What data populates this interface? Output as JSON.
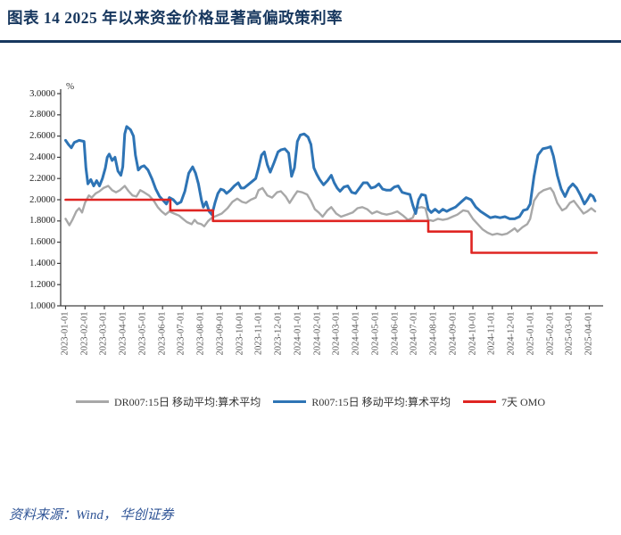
{
  "header": {
    "title": "图表 14  2025 年以来资金价格显著高偏政策利率"
  },
  "footer": {
    "source": "资料来源：Wind， 华创证券"
  },
  "chart_data": {
    "type": "line",
    "unit_label": "%",
    "ylim": [
      1.0,
      3.0
    ],
    "ytick_step": 0.2,
    "grid": false,
    "legend_position": "bottom",
    "ytick_labels": [
      "3.0000",
      "2.8000",
      "2.6000",
      "2.4000",
      "2.2000",
      "2.0000",
      "1.8000",
      "1.6000",
      "1.4000",
      "1.2000",
      "1.0000"
    ],
    "x_categories": [
      "2023-01-01",
      "2023-02-01",
      "2023-03-01",
      "2023-04-01",
      "2023-05-01",
      "2023-06-01",
      "2023-07-01",
      "2023-08-01",
      "2023-09-01",
      "2023-10-01",
      "2023-11-01",
      "2023-12-01",
      "2024-01-01",
      "2024-02-01",
      "2024-03-01",
      "2024-04-01",
      "2024-05-01",
      "2024-06-01",
      "2024-07-01",
      "2024-08-01",
      "2024-09-01",
      "2024-10-01",
      "2024-11-01",
      "2024-12-01",
      "2025-01-01",
      "2025-02-01",
      "2025-03-01",
      "2025-04-01"
    ],
    "series": [
      {
        "name": "DR007:15日 移动平均:算术平均",
        "color": "#a8a8a8",
        "stroke_width": 2.4,
        "points": [
          [
            0.0,
            1.82
          ],
          [
            0.2,
            1.76
          ],
          [
            0.35,
            1.81
          ],
          [
            0.55,
            1.89
          ],
          [
            0.7,
            1.92
          ],
          [
            0.85,
            1.88
          ],
          [
            1.0,
            1.97
          ],
          [
            1.2,
            2.04
          ],
          [
            1.35,
            2.02
          ],
          [
            1.55,
            2.06
          ],
          [
            1.75,
            2.08
          ],
          [
            1.95,
            2.11
          ],
          [
            2.2,
            2.13
          ],
          [
            2.4,
            2.09
          ],
          [
            2.6,
            2.07
          ],
          [
            2.8,
            2.09
          ],
          [
            3.05,
            2.13
          ],
          [
            3.25,
            2.08
          ],
          [
            3.45,
            2.04
          ],
          [
            3.65,
            2.03
          ],
          [
            3.85,
            2.09
          ],
          [
            4.05,
            2.07
          ],
          [
            4.3,
            2.04
          ],
          [
            4.55,
            1.99
          ],
          [
            4.75,
            1.93
          ],
          [
            4.95,
            1.89
          ],
          [
            5.15,
            1.86
          ],
          [
            5.35,
            1.89
          ],
          [
            5.6,
            1.87
          ],
          [
            5.85,
            1.85
          ],
          [
            6.05,
            1.82
          ],
          [
            6.25,
            1.79
          ],
          [
            6.5,
            1.77
          ],
          [
            6.65,
            1.81
          ],
          [
            6.8,
            1.78
          ],
          [
            7.0,
            1.77
          ],
          [
            7.15,
            1.75
          ],
          [
            7.35,
            1.8
          ],
          [
            7.55,
            1.83
          ],
          [
            7.8,
            1.85
          ],
          [
            8.05,
            1.87
          ],
          [
            8.35,
            1.92
          ],
          [
            8.6,
            1.98
          ],
          [
            8.85,
            2.01
          ],
          [
            9.1,
            1.98
          ],
          [
            9.3,
            1.97
          ],
          [
            9.55,
            2.0
          ],
          [
            9.8,
            2.02
          ],
          [
            9.95,
            2.09
          ],
          [
            10.15,
            2.11
          ],
          [
            10.4,
            2.04
          ],
          [
            10.65,
            2.02
          ],
          [
            10.9,
            2.07
          ],
          [
            11.1,
            2.08
          ],
          [
            11.35,
            2.03
          ],
          [
            11.55,
            1.97
          ],
          [
            11.8,
            2.04
          ],
          [
            11.95,
            2.08
          ],
          [
            12.2,
            2.07
          ],
          [
            12.45,
            2.05
          ],
          [
            12.65,
            1.99
          ],
          [
            12.85,
            1.91
          ],
          [
            13.05,
            1.88
          ],
          [
            13.25,
            1.84
          ],
          [
            13.5,
            1.9
          ],
          [
            13.7,
            1.93
          ],
          [
            13.95,
            1.87
          ],
          [
            14.2,
            1.84
          ],
          [
            14.5,
            1.86
          ],
          [
            14.8,
            1.88
          ],
          [
            15.05,
            1.92
          ],
          [
            15.3,
            1.93
          ],
          [
            15.55,
            1.91
          ],
          [
            15.8,
            1.87
          ],
          [
            16.05,
            1.89
          ],
          [
            16.3,
            1.87
          ],
          [
            16.55,
            1.86
          ],
          [
            16.8,
            1.87
          ],
          [
            17.1,
            1.89
          ],
          [
            17.4,
            1.85
          ],
          [
            17.65,
            1.81
          ],
          [
            17.9,
            1.83
          ],
          [
            18.1,
            1.92
          ],
          [
            18.35,
            1.93
          ],
          [
            18.55,
            1.92
          ],
          [
            18.7,
            1.81
          ],
          [
            18.95,
            1.8
          ],
          [
            19.2,
            1.82
          ],
          [
            19.45,
            1.81
          ],
          [
            19.7,
            1.82
          ],
          [
            19.95,
            1.84
          ],
          [
            20.2,
            1.86
          ],
          [
            20.5,
            1.9
          ],
          [
            20.75,
            1.89
          ],
          [
            21.0,
            1.82
          ],
          [
            21.25,
            1.77
          ],
          [
            21.5,
            1.72
          ],
          [
            21.75,
            1.69
          ],
          [
            22.0,
            1.67
          ],
          [
            22.25,
            1.68
          ],
          [
            22.5,
            1.67
          ],
          [
            22.75,
            1.68
          ],
          [
            23.0,
            1.71
          ],
          [
            23.15,
            1.73
          ],
          [
            23.3,
            1.7
          ],
          [
            23.55,
            1.74
          ],
          [
            23.8,
            1.77
          ],
          [
            23.95,
            1.82
          ],
          [
            24.15,
            1.99
          ],
          [
            24.4,
            2.06
          ],
          [
            24.65,
            2.09
          ],
          [
            25.0,
            2.11
          ],
          [
            25.15,
            2.07
          ],
          [
            25.35,
            1.97
          ],
          [
            25.6,
            1.9
          ],
          [
            25.8,
            1.92
          ],
          [
            26.0,
            1.97
          ],
          [
            26.2,
            1.99
          ],
          [
            26.45,
            1.93
          ],
          [
            26.7,
            1.87
          ],
          [
            26.9,
            1.89
          ],
          [
            27.1,
            1.92
          ],
          [
            27.3,
            1.89
          ]
        ]
      },
      {
        "name": "R007:15日 移动平均:算术平均",
        "color": "#2e74b5",
        "stroke_width": 3,
        "points": [
          [
            0.0,
            2.56
          ],
          [
            0.15,
            2.52
          ],
          [
            0.3,
            2.49
          ],
          [
            0.45,
            2.54
          ],
          [
            0.7,
            2.56
          ],
          [
            0.95,
            2.55
          ],
          [
            1.05,
            2.3
          ],
          [
            1.15,
            2.15
          ],
          [
            1.3,
            2.19
          ],
          [
            1.45,
            2.13
          ],
          [
            1.6,
            2.18
          ],
          [
            1.75,
            2.13
          ],
          [
            1.9,
            2.2
          ],
          [
            2.05,
            2.3
          ],
          [
            2.15,
            2.4
          ],
          [
            2.25,
            2.43
          ],
          [
            2.4,
            2.37
          ],
          [
            2.55,
            2.4
          ],
          [
            2.7,
            2.27
          ],
          [
            2.85,
            2.23
          ],
          [
            2.95,
            2.31
          ],
          [
            3.05,
            2.62
          ],
          [
            3.15,
            2.69
          ],
          [
            3.35,
            2.66
          ],
          [
            3.5,
            2.6
          ],
          [
            3.6,
            2.42
          ],
          [
            3.75,
            2.28
          ],
          [
            3.9,
            2.31
          ],
          [
            4.05,
            2.32
          ],
          [
            4.25,
            2.28
          ],
          [
            4.45,
            2.2
          ],
          [
            4.65,
            2.1
          ],
          [
            4.85,
            2.03
          ],
          [
            5.05,
            1.99
          ],
          [
            5.2,
            1.96
          ],
          [
            5.35,
            2.02
          ],
          [
            5.55,
            2.0
          ],
          [
            5.75,
            1.96
          ],
          [
            5.95,
            1.98
          ],
          [
            6.15,
            2.08
          ],
          [
            6.35,
            2.25
          ],
          [
            6.55,
            2.31
          ],
          [
            6.7,
            2.25
          ],
          [
            6.85,
            2.15
          ],
          [
            7.0,
            2.0
          ],
          [
            7.1,
            1.93
          ],
          [
            7.25,
            1.98
          ],
          [
            7.4,
            1.89
          ],
          [
            7.55,
            1.86
          ],
          [
            7.7,
            1.97
          ],
          [
            7.85,
            2.06
          ],
          [
            8.0,
            2.1
          ],
          [
            8.15,
            2.09
          ],
          [
            8.3,
            2.06
          ],
          [
            8.5,
            2.09
          ],
          [
            8.7,
            2.13
          ],
          [
            8.9,
            2.16
          ],
          [
            9.05,
            2.11
          ],
          [
            9.2,
            2.11
          ],
          [
            9.4,
            2.14
          ],
          [
            9.6,
            2.17
          ],
          [
            9.8,
            2.2
          ],
          [
            9.95,
            2.3
          ],
          [
            10.1,
            2.42
          ],
          [
            10.25,
            2.45
          ],
          [
            10.4,
            2.33
          ],
          [
            10.55,
            2.26
          ],
          [
            10.75,
            2.35
          ],
          [
            10.95,
            2.45
          ],
          [
            11.1,
            2.47
          ],
          [
            11.3,
            2.48
          ],
          [
            11.5,
            2.44
          ],
          [
            11.65,
            2.22
          ],
          [
            11.8,
            2.3
          ],
          [
            11.95,
            2.55
          ],
          [
            12.1,
            2.61
          ],
          [
            12.3,
            2.62
          ],
          [
            12.5,
            2.59
          ],
          [
            12.65,
            2.52
          ],
          [
            12.8,
            2.3
          ],
          [
            12.95,
            2.24
          ],
          [
            13.1,
            2.19
          ],
          [
            13.3,
            2.14
          ],
          [
            13.5,
            2.18
          ],
          [
            13.7,
            2.23
          ],
          [
            13.85,
            2.16
          ],
          [
            14.0,
            2.11
          ],
          [
            14.15,
            2.08
          ],
          [
            14.35,
            2.12
          ],
          [
            14.55,
            2.13
          ],
          [
            14.75,
            2.07
          ],
          [
            14.95,
            2.06
          ],
          [
            15.15,
            2.11
          ],
          [
            15.35,
            2.16
          ],
          [
            15.55,
            2.16
          ],
          [
            15.75,
            2.11
          ],
          [
            15.95,
            2.12
          ],
          [
            16.15,
            2.15
          ],
          [
            16.35,
            2.1
          ],
          [
            16.55,
            2.09
          ],
          [
            16.75,
            2.09
          ],
          [
            16.95,
            2.12
          ],
          [
            17.15,
            2.13
          ],
          [
            17.35,
            2.07
          ],
          [
            17.55,
            2.06
          ],
          [
            17.75,
            2.05
          ],
          [
            17.9,
            1.95
          ],
          [
            18.05,
            1.87
          ],
          [
            18.2,
            2.0
          ],
          [
            18.35,
            2.05
          ],
          [
            18.55,
            2.04
          ],
          [
            18.7,
            1.91
          ],
          [
            18.85,
            1.88
          ],
          [
            19.05,
            1.91
          ],
          [
            19.25,
            1.88
          ],
          [
            19.45,
            1.91
          ],
          [
            19.65,
            1.89
          ],
          [
            19.85,
            1.91
          ],
          [
            20.1,
            1.93
          ],
          [
            20.4,
            1.98
          ],
          [
            20.65,
            2.02
          ],
          [
            20.9,
            2.0
          ],
          [
            21.15,
            1.93
          ],
          [
            21.4,
            1.89
          ],
          [
            21.65,
            1.86
          ],
          [
            21.9,
            1.83
          ],
          [
            22.15,
            1.84
          ],
          [
            22.4,
            1.83
          ],
          [
            22.65,
            1.84
          ],
          [
            22.9,
            1.82
          ],
          [
            23.15,
            1.82
          ],
          [
            23.4,
            1.84
          ],
          [
            23.6,
            1.9
          ],
          [
            23.8,
            1.91
          ],
          [
            23.95,
            1.96
          ],
          [
            24.15,
            2.22
          ],
          [
            24.35,
            2.42
          ],
          [
            24.6,
            2.48
          ],
          [
            24.85,
            2.49
          ],
          [
            25.0,
            2.5
          ],
          [
            25.15,
            2.41
          ],
          [
            25.35,
            2.23
          ],
          [
            25.55,
            2.1
          ],
          [
            25.75,
            2.03
          ],
          [
            25.95,
            2.11
          ],
          [
            26.15,
            2.15
          ],
          [
            26.35,
            2.11
          ],
          [
            26.55,
            2.04
          ],
          [
            26.75,
            1.96
          ],
          [
            26.9,
            2.0
          ],
          [
            27.05,
            2.05
          ],
          [
            27.2,
            2.03
          ],
          [
            27.3,
            1.99
          ]
        ]
      },
      {
        "name": "7天 OMO",
        "color": "#df2522",
        "stroke_width": 2.6,
        "points": [
          [
            0.0,
            2.0
          ],
          [
            5.4,
            2.0
          ],
          [
            5.4,
            1.9
          ],
          [
            7.6,
            1.9
          ],
          [
            7.6,
            1.8
          ],
          [
            18.7,
            1.8
          ],
          [
            18.7,
            1.7
          ],
          [
            20.93,
            1.7
          ],
          [
            20.93,
            1.5
          ],
          [
            27.38,
            1.5
          ]
        ]
      }
    ]
  }
}
